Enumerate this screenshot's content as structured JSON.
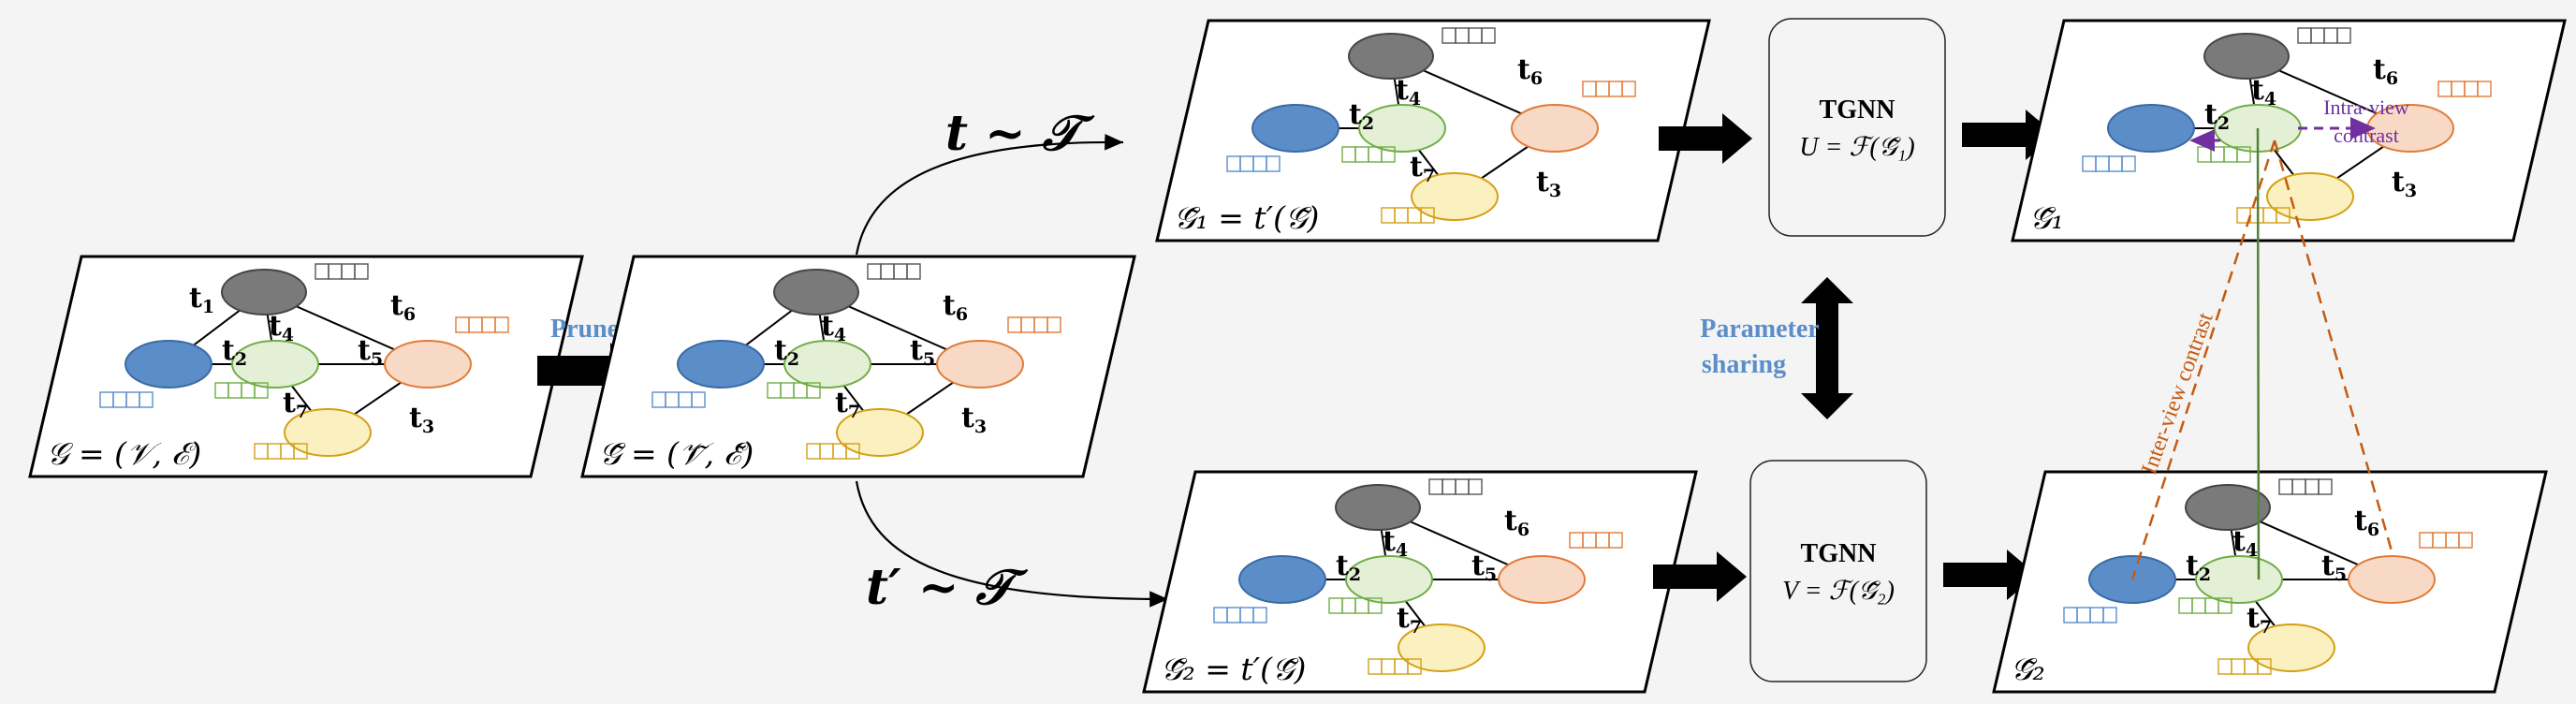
{
  "colors": {
    "dark_node": "#7a7a7a",
    "blue_node": "#5b8ec9",
    "green_node": "#e3f0d6",
    "orange_node": "#f8d9c6",
    "yellow_node": "#fbf0bf",
    "purple": "#7030a0",
    "orange_line": "#c55a11",
    "green_line": "#548235"
  },
  "edge_labels": {
    "t1": "t",
    "t1_sub": "1",
    "t2": "t",
    "t2_sub": "2",
    "t3": "t",
    "t3_sub": "3",
    "t4": "t",
    "t4_sub": "4",
    "t5": "t",
    "t5_sub": "5",
    "t6": "t",
    "t6_sub": "6",
    "t7": "t",
    "t7_sub": "7"
  },
  "graphs": {
    "original": "𝒢 = (𝒱, ℰ)",
    "pruned": "𝒢̃ = (𝒱̃, ℰ̃)",
    "view1": "𝒢̃₁ = t′(𝒢̃)",
    "view2": "𝒢̃₂ = t′(𝒢̃)",
    "out1": "𝒢̃₁",
    "out2": "𝒢̃₂"
  },
  "labels": {
    "prune": "Prune",
    "aug_top": "t ~ 𝒯",
    "aug_bottom": "t′ ~ 𝒯",
    "param_line1": "Parameter",
    "param_line2": "sharing",
    "intra_line1": "Intra-view",
    "intra_line2": "contrast",
    "inter": "Inter-view contrast"
  },
  "tgnn_top": {
    "title": "TGNN",
    "formula": "U = ℱ(𝒢̃₁)"
  },
  "tgnn_bottom": {
    "title": "TGNN",
    "formula": "V = ℱ(𝒢̃₂)"
  }
}
